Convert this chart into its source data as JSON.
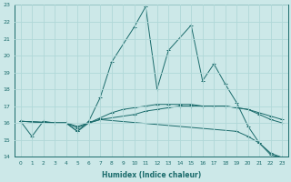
{
  "xlabel": "Humidex (Indice chaleur)",
  "xlim": [
    -0.5,
    23.5
  ],
  "ylim": [
    14,
    23
  ],
  "xticks": [
    0,
    1,
    2,
    3,
    4,
    5,
    6,
    7,
    8,
    9,
    10,
    11,
    12,
    13,
    14,
    15,
    16,
    17,
    18,
    19,
    20,
    21,
    22,
    23
  ],
  "yticks": [
    14,
    15,
    16,
    17,
    18,
    19,
    20,
    21,
    22,
    23
  ],
  "bg_color": "#cce8e8",
  "grid_color": "#b0d8d8",
  "line_color": "#1a6b6b",
  "series": [
    {
      "x": [
        0,
        1,
        2,
        3,
        4,
        5,
        6,
        7,
        8,
        10,
        11,
        12,
        13,
        15,
        16,
        17,
        18,
        19,
        20,
        21,
        22,
        23
      ],
      "y": [
        16.1,
        15.2,
        16.1,
        16.0,
        16.0,
        15.5,
        16.1,
        17.5,
        19.6,
        21.7,
        22.9,
        18.0,
        20.3,
        21.8,
        18.5,
        19.5,
        18.3,
        17.2,
        15.8,
        14.8,
        14.1,
        13.95
      ]
    },
    {
      "x": [
        0,
        3,
        4,
        5,
        6,
        7,
        19,
        20,
        21,
        22,
        23
      ],
      "y": [
        16.1,
        16.0,
        16.0,
        15.5,
        16.0,
        16.2,
        15.5,
        15.2,
        14.8,
        14.2,
        13.95
      ]
    },
    {
      "x": [
        0,
        3,
        4,
        5,
        6,
        7,
        8,
        9,
        10,
        11,
        12,
        13,
        14,
        15,
        16,
        17,
        18,
        19,
        20,
        21,
        22,
        23
      ],
      "y": [
        16.1,
        16.0,
        16.0,
        15.7,
        16.0,
        16.3,
        16.6,
        16.8,
        16.9,
        17.0,
        17.1,
        17.1,
        17.1,
        17.1,
        17.0,
        17.0,
        17.0,
        16.9,
        16.8,
        16.5,
        16.2,
        16.0
      ]
    },
    {
      "x": [
        0,
        3,
        4,
        5,
        6,
        7,
        10,
        11,
        12,
        13,
        14,
        15,
        16,
        17,
        18,
        19,
        20,
        21,
        22,
        23
      ],
      "y": [
        16.1,
        16.0,
        16.0,
        15.8,
        16.0,
        16.2,
        16.5,
        16.7,
        16.8,
        16.9,
        17.0,
        17.0,
        17.0,
        17.0,
        17.0,
        16.9,
        16.8,
        16.6,
        16.4,
        16.2
      ]
    }
  ]
}
